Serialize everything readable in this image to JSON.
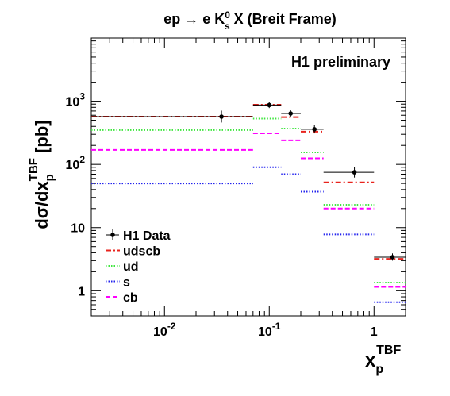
{
  "chart_data": {
    "type": "step",
    "title": "ep → e K",
    "title_sup": "0",
    "title_sub": "s",
    "title_rest": " X (Breit Frame)",
    "annotation": "H1 preliminary",
    "ylabel": {
      "main": "dσ/dx",
      "sub": "p",
      "sup": "TBF",
      "unit": " [pb]"
    },
    "xlabel": {
      "main": "x",
      "sub": "p",
      "sup": "TBF"
    },
    "x_scale": "log",
    "y_scale": "log",
    "xlim": [
      0.002,
      2.0
    ],
    "ylim": [
      0.4,
      10000
    ],
    "x_ticks": [
      {
        "value": 0.01,
        "base": "10",
        "exp": "-2"
      },
      {
        "value": 0.1,
        "base": "10",
        "exp": "-1"
      },
      {
        "value": 1,
        "base": "1",
        "exp": ""
      }
    ],
    "y_ticks": [
      {
        "value": 1,
        "base": "1",
        "exp": ""
      },
      {
        "value": 10,
        "base": "10",
        "exp": ""
      },
      {
        "value": 100,
        "base": "10",
        "exp": "2"
      },
      {
        "value": 1000,
        "base": "10",
        "exp": "3"
      }
    ],
    "bin_edges": [
      0.002,
      0.07,
      0.13,
      0.2,
      0.33,
      1.0,
      2.0
    ],
    "series": [
      {
        "name": "udscb",
        "style": "dashdot",
        "color": "#e8231d",
        "values": [
          570,
          880,
          560,
          330,
          52,
          3.2
        ]
      },
      {
        "name": "ud",
        "style": "dotted",
        "color": "#3ee63e",
        "values": [
          350,
          530,
          370,
          155,
          23,
          1.35
        ]
      },
      {
        "name": "s",
        "style": "dotted",
        "color": "#2222ee",
        "values": [
          50,
          90,
          70,
          37,
          7.8,
          0.66
        ]
      },
      {
        "name": "cb",
        "style": "dashed",
        "color": "#ff00ff",
        "values": [
          170,
          310,
          240,
          125,
          20,
          1.15
        ]
      }
    ],
    "data": {
      "name": "H1 Data",
      "color": "#000000",
      "points": [
        {
          "x": 0.035,
          "y": 570,
          "xerr": [
            0.002,
            0.07
          ],
          "yerr": [
            460,
            710
          ]
        },
        {
          "x": 0.1,
          "y": 870,
          "xerr": [
            0.07,
            0.13
          ],
          "yerr": [
            780,
            970
          ]
        },
        {
          "x": 0.16,
          "y": 640,
          "xerr": [
            0.13,
            0.2
          ],
          "yerr": [
            560,
            730
          ]
        },
        {
          "x": 0.27,
          "y": 360,
          "xerr": [
            0.2,
            0.33
          ],
          "yerr": [
            310,
            420
          ]
        },
        {
          "x": 0.65,
          "y": 75,
          "xerr": [
            0.33,
            1.0
          ],
          "yerr": [
            62,
            90
          ]
        },
        {
          "x": 1.5,
          "y": 3.4,
          "xerr": [
            1.0,
            2.0
          ],
          "yerr": [
            3.0,
            3.9
          ]
        }
      ]
    },
    "legend": {
      "placement": "bottom-left",
      "entries": [
        "H1 Data",
        "udscb",
        "ud",
        "s",
        "cb"
      ]
    }
  }
}
